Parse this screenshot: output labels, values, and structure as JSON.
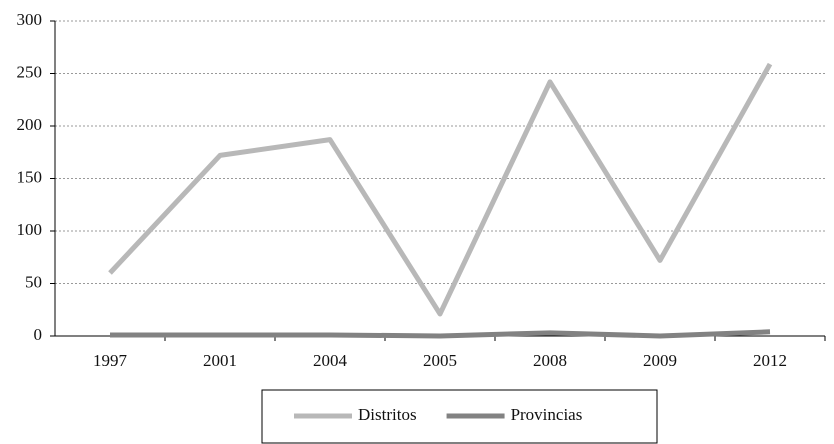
{
  "chart_data": {
    "type": "line",
    "categories": [
      "1997",
      "2001",
      "2004",
      "2005",
      "2008",
      "2009",
      "2012"
    ],
    "series": [
      {
        "name": "Distritos",
        "color": "#b8b8b8",
        "values": [
          60,
          172,
          187,
          21,
          242,
          72,
          259
        ]
      },
      {
        "name": "Provincias",
        "color": "#828282",
        "values": [
          1,
          1,
          1,
          0,
          3,
          0,
          4
        ]
      }
    ],
    "ylim": [
      0,
      300
    ],
    "yticks": [
      0,
      50,
      100,
      150,
      200,
      250,
      300
    ],
    "grid": true,
    "legend": "bottom"
  }
}
